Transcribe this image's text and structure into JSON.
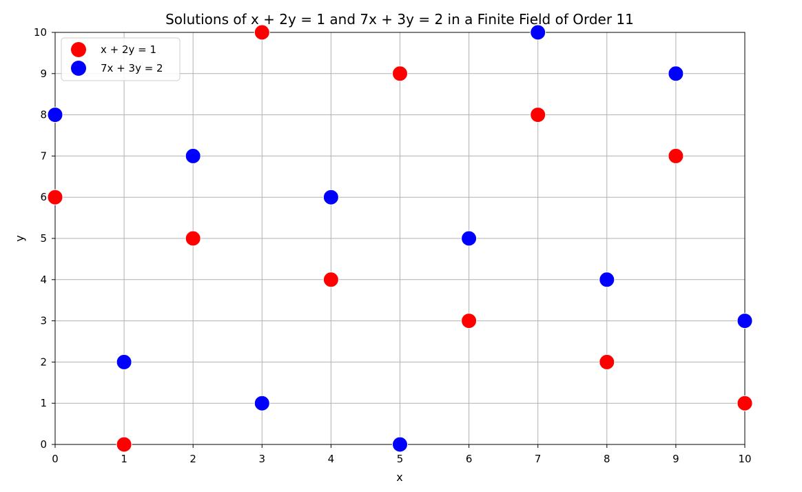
{
  "chart_data": {
    "type": "scatter",
    "title": "Solutions of x + 2y = 1 and 7x + 3y = 2 in a Finite Field of Order 11",
    "xlabel": "x",
    "ylabel": "y",
    "xlim": [
      0,
      10
    ],
    "ylim": [
      0,
      10
    ],
    "xticks": [
      "0",
      "1",
      "2",
      "3",
      "4",
      "5",
      "6",
      "7",
      "8",
      "9",
      "10"
    ],
    "yticks": [
      "0",
      "1",
      "2",
      "3",
      "4",
      "5",
      "6",
      "7",
      "8",
      "9",
      "10"
    ],
    "grid": true,
    "legend_position": "top-left",
    "series": [
      {
        "name": "x + 2y = 1",
        "color": "#ff0000",
        "points": [
          [
            0,
            6
          ],
          [
            1,
            0
          ],
          [
            2,
            5
          ],
          [
            3,
            10
          ],
          [
            4,
            4
          ],
          [
            5,
            9
          ],
          [
            6,
            3
          ],
          [
            7,
            8
          ],
          [
            8,
            2
          ],
          [
            9,
            7
          ],
          [
            10,
            1
          ]
        ]
      },
      {
        "name": "7x + 3y = 2",
        "color": "#0000ff",
        "points": [
          [
            0,
            8
          ],
          [
            1,
            2
          ],
          [
            2,
            7
          ],
          [
            3,
            1
          ],
          [
            4,
            6
          ],
          [
            5,
            0
          ],
          [
            6,
            5
          ],
          [
            7,
            10
          ],
          [
            8,
            4
          ],
          [
            9,
            9
          ],
          [
            10,
            3
          ]
        ]
      }
    ]
  }
}
